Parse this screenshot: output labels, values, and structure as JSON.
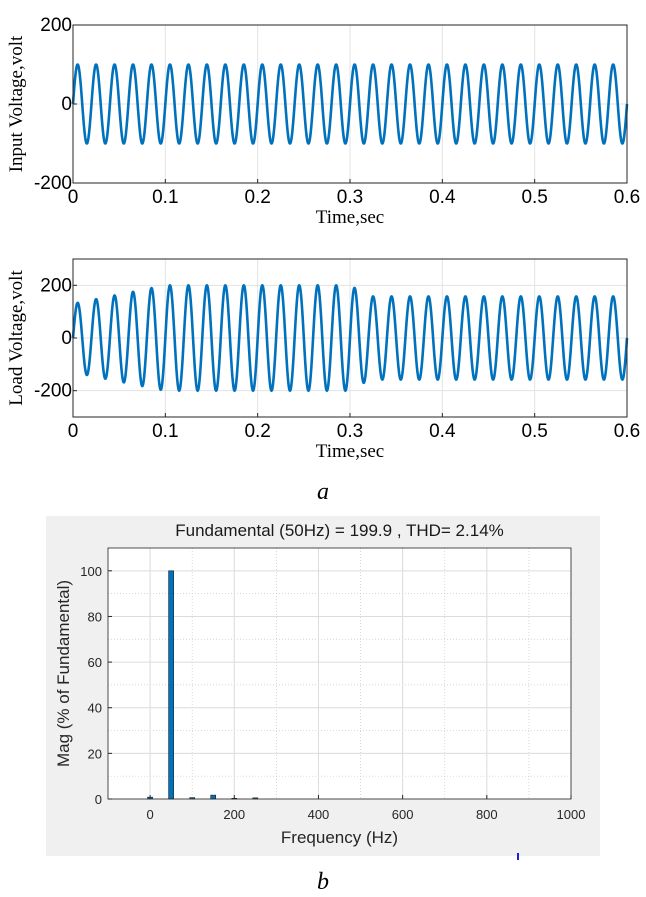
{
  "chart_data": [
    {
      "type": "line",
      "panel": "a-top",
      "ylabel": "Input Voltage,volt",
      "xlabel": "Time,sec",
      "xlim": [
        0,
        0.6
      ],
      "ylim": [
        -200,
        200
      ],
      "xticks": [
        "0",
        "0.1",
        "0.2",
        "0.3",
        "0.4",
        "0.5",
        "0.6"
      ],
      "yticks": [
        "-200",
        "0",
        "200"
      ],
      "grid": true,
      "color": "#0072BD",
      "series": [
        {
          "frequency_hz": 50,
          "segments": [
            {
              "t_start": 0,
              "t_end": 0.6,
              "amplitude": 100
            }
          ]
        }
      ]
    },
    {
      "type": "line",
      "panel": "a-bottom",
      "ylabel": "Load Voltage,volt",
      "xlabel": "Time,sec",
      "xlim": [
        0,
        0.6
      ],
      "ylim": [
        -300,
        300
      ],
      "xticks": [
        "0",
        "0.1",
        "0.2",
        "0.3",
        "0.4",
        "0.5",
        "0.6"
      ],
      "yticks": [
        "-200",
        "0",
        "200"
      ],
      "grid": true,
      "color": "#0072BD",
      "series": [
        {
          "frequency_hz": 50,
          "segments": [
            {
              "t_start": 0,
              "t_end": 0.1,
              "amplitude_start": 130,
              "amplitude_end": 200
            },
            {
              "t_start": 0.1,
              "t_end": 0.3,
              "amplitude_start": 200,
              "amplitude_end": 200
            },
            {
              "t_start": 0.3,
              "t_end": 0.32,
              "amplitude_start": 200,
              "amplitude_end": 160
            },
            {
              "t_start": 0.32,
              "t_end": 0.6,
              "amplitude_start": 158,
              "amplitude_end": 158
            }
          ]
        }
      ]
    },
    {
      "type": "bar",
      "panel": "b",
      "title": "Fundamental (50Hz) = 199.9 , THD= 2.14%",
      "xlabel": "Frequency (Hz)",
      "ylabel": "Mag (% of Fundamental)",
      "xlim": [
        -100,
        1000
      ],
      "ylim": [
        0,
        110
      ],
      "xticks": [
        "0",
        "200",
        "400",
        "600",
        "800",
        "1000"
      ],
      "yticks": [
        "0",
        "20",
        "40",
        "60",
        "80",
        "100"
      ],
      "grid": true,
      "color": "#0072BD",
      "x": [
        0,
        50,
        100,
        150,
        200,
        250
      ],
      "values": [
        0.8,
        100,
        0.6,
        1.7,
        0.3,
        0.5
      ]
    }
  ],
  "captions": {
    "a": "a",
    "b": "b"
  }
}
